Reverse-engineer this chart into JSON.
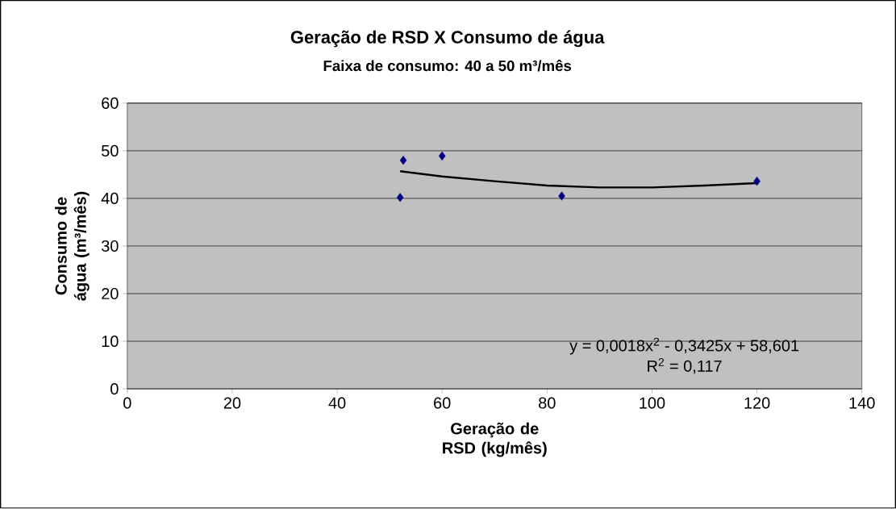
{
  "chart_data": {
    "type": "scatter",
    "title": "Geração de RSD X Consumo de água",
    "subtitle": "Faixa de consumo: 40 a 50 m³/mês",
    "xlabel": "Geração de RSD (kg/mês)",
    "ylabel": "Consumo de água (m³/mês)",
    "series": [
      {
        "type": "scatter",
        "color": "#000080",
        "marker": "diamond",
        "x": [
          52.0,
          52.6,
          60.0,
          82.8,
          120.0
        ],
        "values": [
          40.2,
          48.0,
          48.9,
          40.5,
          43.6
        ]
      },
      {
        "type": "line",
        "color": "#000000",
        "marker": "none",
        "line_style": "solid",
        "x": [
          52,
          60,
          70,
          80,
          90,
          100,
          110,
          120
        ],
        "values": [
          45.7,
          44.6,
          43.6,
          42.7,
          42.3,
          42.3,
          42.7,
          43.2
        ]
      }
    ],
    "annotations": [
      "y = 0,0018x$^{2}$ - 0,3425x + 58,601",
      "R$^{2}$ = 0,117"
    ],
    "xlim": [
      0,
      140
    ],
    "xticks": [
      0,
      20,
      40,
      60,
      80,
      100,
      120,
      140
    ],
    "ylim": [
      0,
      60
    ],
    "yticks": [
      0,
      10,
      20,
      30,
      40,
      50,
      60
    ],
    "grid": "y"
  }
}
